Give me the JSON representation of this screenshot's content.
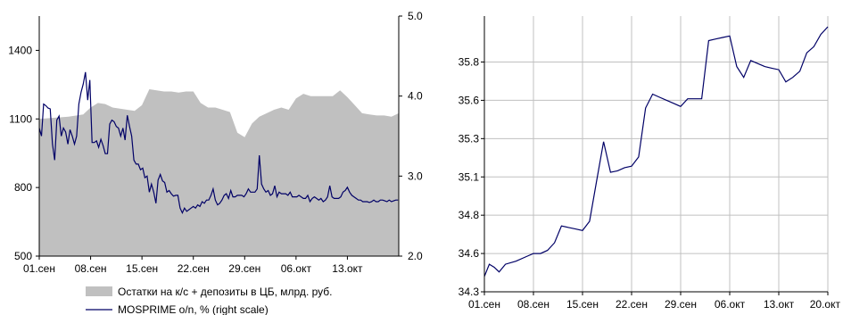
{
  "colors": {
    "area_fill": "#c0c0c0",
    "line": "#000066",
    "grid": "#c0c0c0",
    "axis": "#000000"
  },
  "chart_data": [
    {
      "type": "area+line",
      "title": "",
      "x_ticks": [
        "01.сен",
        "08.сен",
        "15.сен",
        "22.сен",
        "29.сен",
        "06.окт",
        "13.окт"
      ],
      "x_tick_days": [
        0,
        7,
        14,
        21,
        28,
        35,
        42
      ],
      "x_range_days": [
        0,
        49
      ],
      "left_axis": {
        "ylim": [
          500,
          1550
        ],
        "ticks": [
          "500",
          "800",
          "1100",
          "1400"
        ],
        "tick_values": [
          500,
          800,
          1100,
          1400
        ]
      },
      "right_axis": {
        "ylim": [
          2.0,
          5.0
        ],
        "ticks": [
          "2.0",
          "3.0",
          "4.0",
          "5.0"
        ],
        "tick_values": [
          2.0,
          3.0,
          4.0,
          5.0
        ]
      },
      "grid": false,
      "legend_position": "bottom",
      "series": [
        {
          "name": "Остатки на к/с + депозиты в ЦБ, млрд. руб.",
          "kind": "area",
          "axis": "left",
          "x": [
            0,
            2,
            4,
            6,
            7,
            8,
            9,
            10,
            11,
            12,
            13,
            14,
            15,
            16,
            17,
            18,
            19,
            20,
            21,
            22,
            23,
            24,
            25,
            26,
            27,
            28,
            29,
            30,
            31,
            32,
            33,
            34,
            35,
            36,
            37,
            38,
            39,
            40,
            41,
            42,
            43,
            44,
            45,
            46,
            47,
            48,
            49
          ],
          "values": [
            1100,
            1105,
            1110,
            1120,
            1150,
            1170,
            1165,
            1150,
            1145,
            1140,
            1135,
            1160,
            1230,
            1225,
            1220,
            1220,
            1215,
            1220,
            1220,
            1170,
            1150,
            1150,
            1140,
            1130,
            1040,
            1020,
            1080,
            1110,
            1125,
            1140,
            1150,
            1140,
            1190,
            1210,
            1200,
            1200,
            1200,
            1200,
            1225,
            1195,
            1160,
            1125,
            1120,
            1115,
            1115,
            1110,
            1125
          ]
        },
        {
          "name": "MOSPRIME o/n, % (right scale)",
          "kind": "line",
          "axis": "right",
          "x": [
            0,
            0.3,
            0.6,
            0.9,
            1.2,
            1.5,
            1.8,
            2.1,
            2.4,
            2.7,
            3.0,
            3.3,
            3.6,
            3.9,
            4.2,
            4.5,
            4.8,
            5.1,
            5.4,
            5.7,
            6.0,
            6.3,
            6.6,
            6.9,
            7.2,
            7.5,
            7.8,
            8.1,
            8.4,
            8.7,
            9.0,
            9.3,
            9.6,
            9.9,
            10.2,
            10.5,
            10.8,
            11.1,
            11.4,
            11.7,
            12.0,
            12.3,
            12.6,
            12.9,
            13.2,
            13.5,
            13.8,
            14.1,
            14.4,
            14.7,
            15.0,
            15.3,
            15.6,
            15.9,
            16.2,
            16.5,
            16.8,
            17.1,
            17.4,
            17.7,
            18.0,
            18.3,
            18.6,
            18.9,
            19.2,
            19.5,
            19.8,
            20.1,
            20.4,
            20.7,
            21.0,
            21.3,
            21.6,
            21.9,
            22.2,
            22.5,
            22.8,
            23.1,
            23.4,
            23.7,
            24.0,
            24.3,
            24.6,
            24.9,
            25.2,
            25.5,
            25.8,
            26.1,
            26.4,
            26.7,
            27.0,
            27.3,
            27.6,
            27.9,
            28.2,
            28.5,
            28.8,
            29.1,
            29.4,
            29.7,
            30.0,
            30.3,
            30.6,
            30.9,
            31.2,
            31.5,
            31.8,
            32.1,
            32.4,
            32.7,
            33.0,
            33.3,
            33.6,
            33.9,
            34.2,
            34.5,
            34.8,
            35.1,
            35.4,
            35.7,
            36.0,
            36.3,
            36.6,
            36.9,
            37.2,
            37.5,
            37.8,
            38.1,
            38.4,
            38.7,
            39.0,
            39.3,
            39.6,
            39.9,
            40.2,
            40.5,
            40.8,
            41.1,
            41.4,
            41.7,
            42.0,
            42.3,
            42.6,
            42.9,
            43.2,
            43.5,
            43.8,
            44.1,
            44.4,
            44.7,
            45.0,
            45.3,
            45.6,
            45.9,
            46.2,
            46.5,
            46.8,
            47.1,
            47.4,
            47.7,
            48.0,
            48.3,
            48.6,
            48.9
          ],
          "values": [
            3.6,
            3.5,
            3.9,
            3.88,
            3.85,
            3.84,
            3.4,
            3.2,
            3.7,
            3.75,
            3.5,
            3.6,
            3.55,
            3.4,
            3.58,
            3.5,
            3.4,
            3.5,
            3.9,
            4.05,
            4.15,
            4.3,
            3.95,
            4.2,
            3.42,
            3.42,
            3.44,
            3.36,
            3.46,
            3.38,
            3.28,
            3.28,
            3.65,
            3.7,
            3.68,
            3.62,
            3.6,
            3.5,
            3.6,
            3.45,
            3.76,
            3.62,
            3.5,
            3.2,
            3.15,
            3.15,
            3.08,
            3.1,
            2.98,
            3.0,
            2.8,
            2.9,
            2.8,
            2.66,
            2.95,
            3.02,
            2.94,
            2.92,
            2.8,
            2.82,
            2.78,
            2.75,
            2.76,
            2.76,
            2.6,
            2.54,
            2.6,
            2.56,
            2.58,
            2.6,
            2.62,
            2.6,
            2.64,
            2.62,
            2.68,
            2.66,
            2.7,
            2.7,
            2.76,
            2.84,
            2.7,
            2.64,
            2.66,
            2.7,
            2.76,
            2.78,
            2.72,
            2.82,
            2.74,
            2.74,
            2.76,
            2.76,
            2.76,
            2.74,
            2.78,
            2.84,
            2.8,
            2.8,
            2.8,
            2.84,
            3.26,
            2.9,
            2.84,
            2.8,
            2.82,
            2.76,
            2.78,
            2.88,
            2.74,
            2.8,
            2.78,
            2.78,
            2.78,
            2.76,
            2.8,
            2.74,
            2.74,
            2.74,
            2.76,
            2.74,
            2.72,
            2.72,
            2.76,
            2.68,
            2.72,
            2.74,
            2.72,
            2.7,
            2.72,
            2.68,
            2.7,
            2.74,
            2.88,
            2.74,
            2.72,
            2.72,
            2.72,
            2.74,
            2.8,
            2.82,
            2.86,
            2.8,
            2.76,
            2.74,
            2.72,
            2.7,
            2.7,
            2.68,
            2.68,
            2.68,
            2.67,
            2.68,
            2.7,
            2.68,
            2.68,
            2.7,
            2.7,
            2.69,
            2.68,
            2.7,
            2.68,
            2.69,
            2.7,
            2.7
          ]
        }
      ]
    },
    {
      "type": "line",
      "title": "",
      "x_ticks": [
        "01.сен",
        "08.сен",
        "15.сен",
        "22.сен",
        "29.сен",
        "06.окт",
        "13.окт",
        "20.окт"
      ],
      "x_tick_days": [
        0,
        7,
        14,
        21,
        28,
        35,
        42,
        49
      ],
      "x_range_days": [
        0,
        49
      ],
      "ylim": [
        34.3,
        36.1
      ],
      "y_ticks": [
        "34.3",
        "34.6",
        "34.8",
        "35.1",
        "35.3",
        "35.6",
        "35.8"
      ],
      "y_tick_values": [
        34.3,
        34.55,
        34.8,
        35.05,
        35.3,
        35.55,
        35.8
      ],
      "grid": true,
      "series": [
        {
          "name": "",
          "x": [
            0,
            0.7,
            1.4,
            2.1,
            3,
            4.5,
            6,
            7,
            8,
            9,
            10,
            11,
            12,
            13,
            14,
            15,
            16,
            17,
            18,
            19,
            20,
            21,
            22,
            23,
            24,
            25,
            26,
            27,
            28,
            29,
            30,
            31,
            32,
            33,
            34,
            35,
            36,
            37,
            38,
            39,
            40,
            41,
            42,
            43,
            44,
            45,
            46,
            47,
            48,
            49
          ],
          "values": [
            34.4,
            34.48,
            34.46,
            34.43,
            34.48,
            34.5,
            34.53,
            34.55,
            34.55,
            34.57,
            34.62,
            34.73,
            34.72,
            34.71,
            34.7,
            34.76,
            35.02,
            35.28,
            35.08,
            35.09,
            35.11,
            35.12,
            35.18,
            35.5,
            35.59,
            35.57,
            35.55,
            35.53,
            35.51,
            35.56,
            35.56,
            35.56,
            35.94,
            35.95,
            35.96,
            35.97,
            35.77,
            35.7,
            35.81,
            35.79,
            35.77,
            35.76,
            35.75,
            35.67,
            35.7,
            35.74,
            35.86,
            35.9,
            35.98,
            36.03
          ]
        }
      ]
    }
  ],
  "legend": {
    "area_label": "Остатки на к/с + депозиты в ЦБ, млрд. руб.",
    "line_label": "MOSPRIME o/n, % (right scale)"
  }
}
